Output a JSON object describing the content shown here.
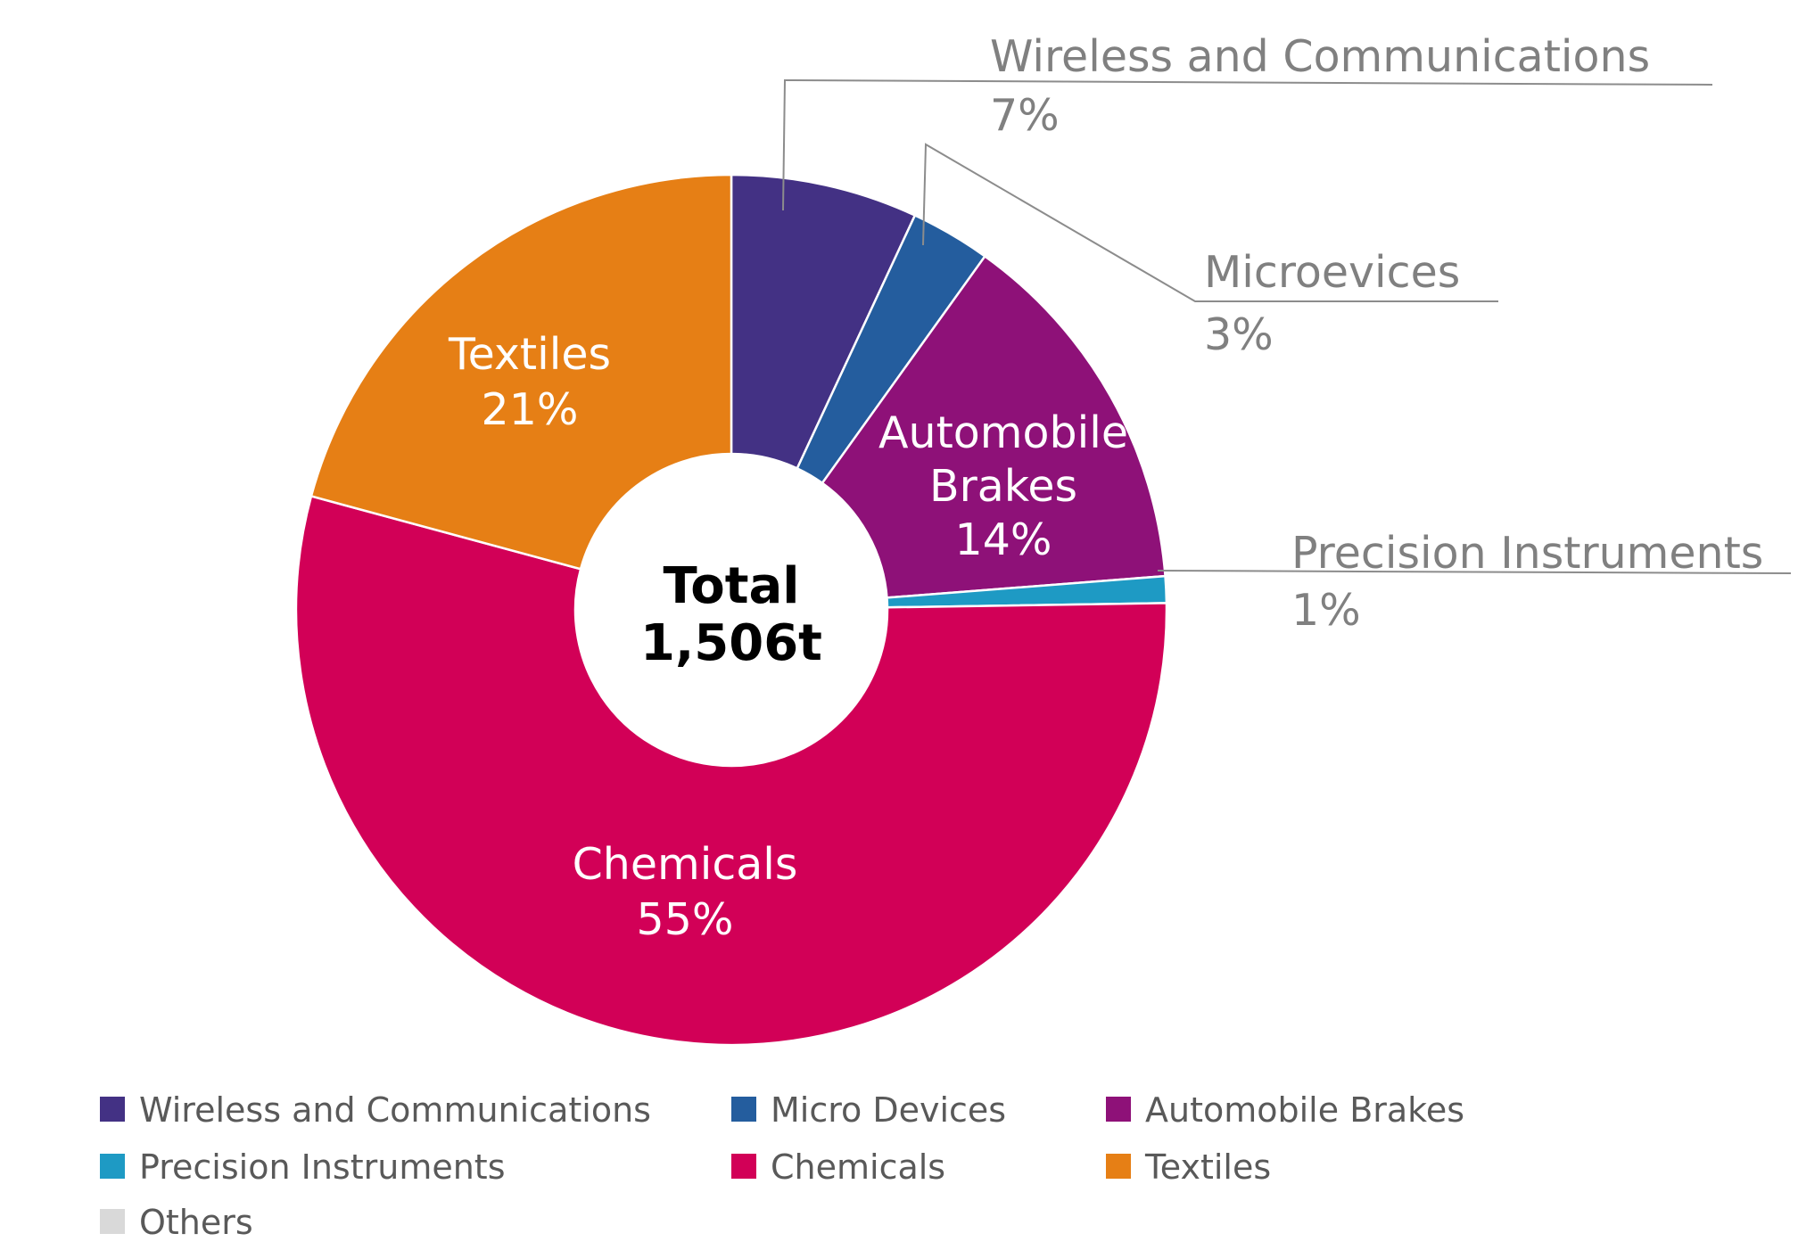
{
  "chart_data": {
    "type": "pie",
    "donut": true,
    "center_label": [
      "Total",
      "1,506t"
    ],
    "slices": [
      {
        "name": "Wireless and Communications",
        "percent": 7,
        "color": "#433184",
        "label_lines": [
          "Wireless and Communications",
          "7%"
        ],
        "label_style": "callout"
      },
      {
        "name": "Micro Devices",
        "percent": 3,
        "color": "#245d9e",
        "label_lines": [
          "Microevices",
          "3%"
        ],
        "label_style": "callout"
      },
      {
        "name": "Automobile Brakes",
        "percent": 14,
        "color": "#8e1178",
        "label_lines": [
          "Automobile",
          "Brakes",
          "14%"
        ],
        "label_style": "inside"
      },
      {
        "name": "Precision Instruments",
        "percent": 1,
        "color": "#1e9ac4",
        "label_lines": [
          "Precision Instruments",
          "1%"
        ],
        "label_style": "callout"
      },
      {
        "name": "Chemicals",
        "percent": 55,
        "color": "#d20057",
        "label_lines": [
          "Chemicals",
          "55%"
        ],
        "label_style": "inside"
      },
      {
        "name": "Textiles",
        "percent": 21,
        "color": "#e67f15",
        "label_lines": [
          "Textiles",
          "21%"
        ],
        "label_style": "inside"
      }
    ],
    "legend": {
      "placement": "bottom",
      "items": [
        {
          "label": "Wireless and Communications",
          "color": "#433184"
        },
        {
          "label": "Micro Devices",
          "color": "#245d9e"
        },
        {
          "label": "Automobile Brakes",
          "color": "#8e1178"
        },
        {
          "label": "Precision Instruments",
          "color": "#1e9ac4"
        },
        {
          "label": "Chemicals",
          "color": "#d20057"
        },
        {
          "label": "Textiles",
          "color": "#e67f15"
        },
        {
          "label": "Others",
          "color": "#d9d9d9"
        }
      ]
    }
  }
}
